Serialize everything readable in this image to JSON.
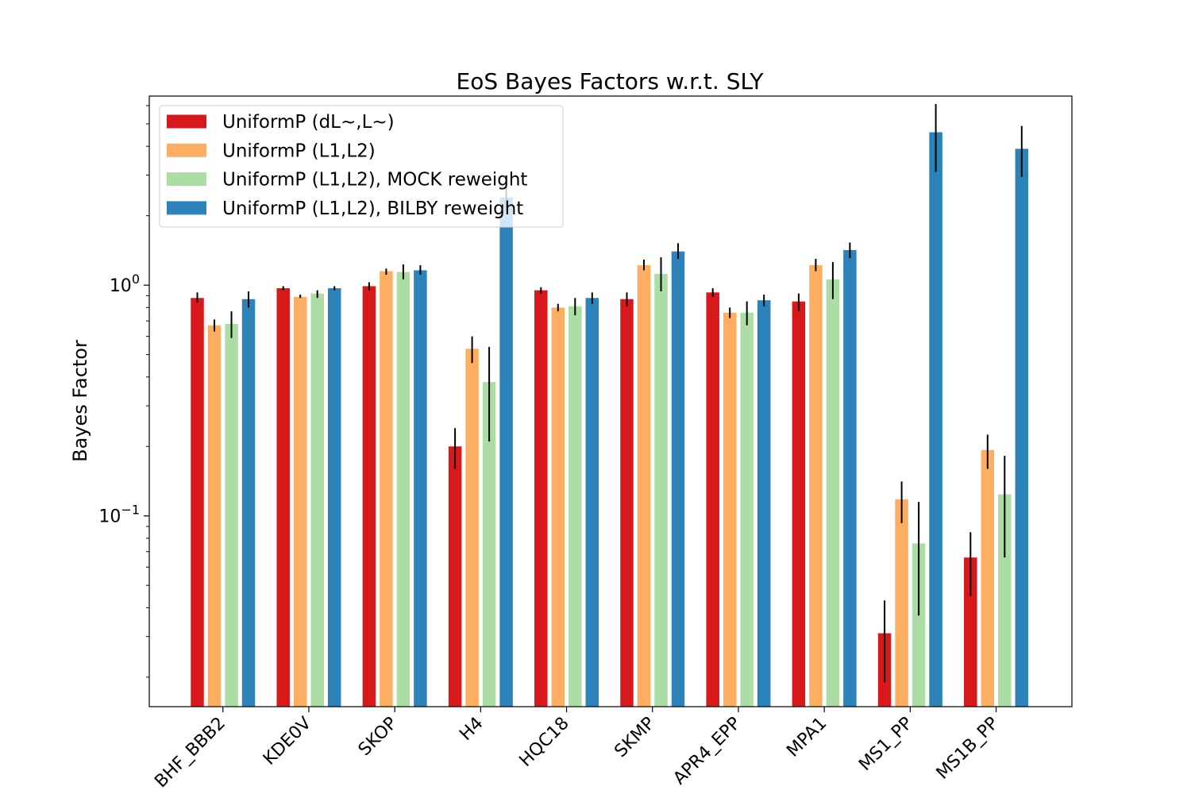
{
  "chart_data": {
    "type": "bar",
    "title": "EoS Bayes Factors w.r.t. SLY",
    "xlabel": "",
    "ylabel": "Bayes Factor",
    "yscale": "log",
    "ylim": [
      0.0149,
      6.6
    ],
    "y_ticks": [
      {
        "value": 0.1,
        "base": "10",
        "exp": "−1"
      },
      {
        "value": 1,
        "base": "10",
        "exp": "0"
      }
    ],
    "grid": false,
    "legend_position": "top-left",
    "categories": [
      "BHF_BBB2",
      "KDE0V",
      "SKOP",
      "H4",
      "HQC18",
      "SKMP",
      "APR4_EPP",
      "MPA1",
      "MS1_PP",
      "MS1B_PP"
    ],
    "series": [
      {
        "name": "UniformP (dL~,L~)",
        "color": "#d7191c",
        "values": [
          0.88,
          0.97,
          0.99,
          0.2,
          0.95,
          0.87,
          0.93,
          0.85,
          0.031,
          0.066
        ],
        "err_low": [
          0.84,
          0.95,
          0.95,
          0.16,
          0.92,
          0.81,
          0.89,
          0.77,
          0.019,
          0.045
        ],
        "err_high": [
          0.93,
          0.99,
          1.03,
          0.24,
          0.98,
          0.93,
          0.97,
          0.92,
          0.043,
          0.085
        ]
      },
      {
        "name": "UniformP (L1,L2)",
        "color": "#fdae61",
        "values": [
          0.67,
          0.89,
          1.15,
          0.53,
          0.8,
          1.22,
          0.76,
          1.22,
          0.118,
          0.193
        ],
        "err_low": [
          0.63,
          0.88,
          1.11,
          0.46,
          0.77,
          1.16,
          0.72,
          1.15,
          0.093,
          0.16
        ],
        "err_high": [
          0.71,
          0.91,
          1.18,
          0.6,
          0.83,
          1.29,
          0.8,
          1.3,
          0.141,
          0.225
        ]
      },
      {
        "name": "UniformP (L1,L2), MOCK reweight",
        "color": "#abdda4",
        "values": [
          0.68,
          0.92,
          1.14,
          0.38,
          0.81,
          1.12,
          0.76,
          1.06,
          0.076,
          0.124
        ],
        "err_low": [
          0.59,
          0.88,
          1.06,
          0.21,
          0.74,
          0.94,
          0.67,
          0.87,
          0.037,
          0.066
        ],
        "err_high": [
          0.77,
          0.95,
          1.23,
          0.54,
          0.88,
          1.32,
          0.85,
          1.26,
          0.115,
          0.182
        ]
      },
      {
        "name": "UniformP (L1,L2), BILBY reweight",
        "color": "#2b83ba",
        "values": [
          0.87,
          0.97,
          1.16,
          2.4,
          0.88,
          1.4,
          0.86,
          1.42,
          4.6,
          3.9
        ],
        "err_low": [
          0.8,
          0.95,
          1.11,
          2.1,
          0.83,
          1.3,
          0.81,
          1.31,
          3.1,
          2.95
        ],
        "err_high": [
          0.94,
          0.99,
          1.22,
          2.7,
          0.93,
          1.52,
          0.91,
          1.53,
          6.1,
          4.9
        ]
      }
    ]
  }
}
